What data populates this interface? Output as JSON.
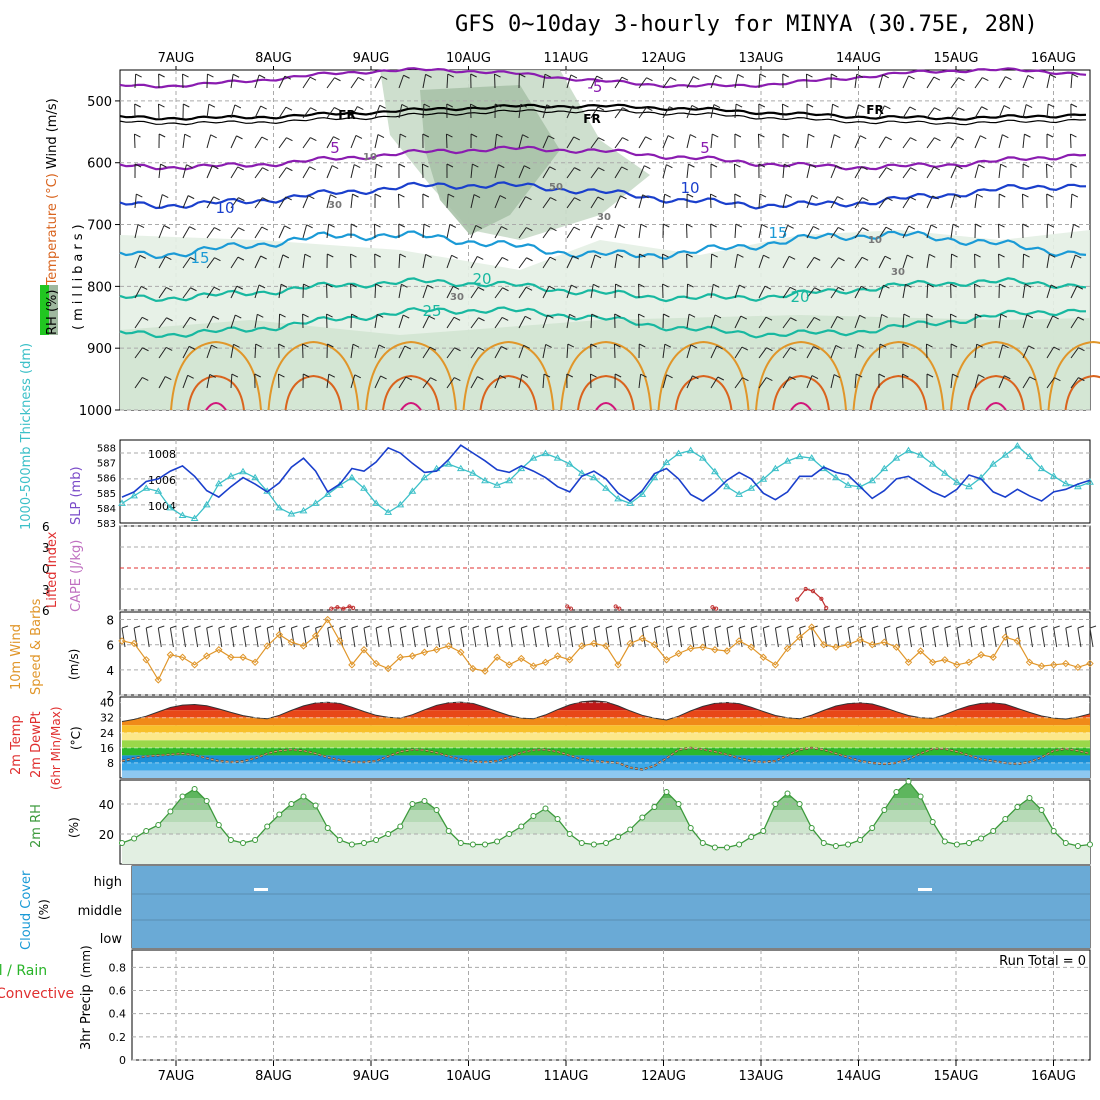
{
  "title": "GFS 0~10day 3-hourly for MINYA (30.75E, 28N)",
  "dates": [
    "7AUG",
    "8AUG",
    "9AUG",
    "10AUG",
    "11AUG",
    "12AUG",
    "13AUG",
    "14AUG",
    "15AUG",
    "16AUG"
  ],
  "colors": {
    "purple": "#8a1cb0",
    "black": "#000000",
    "blue_dark": "#1a3fcc",
    "blue": "#1a9ad6",
    "teal": "#18b8a0",
    "orange": "#e0962a",
    "orange_dark": "#d9641e",
    "magenta": "#d1167a",
    "rh_green": "#cfe3cf",
    "slp": "#1a3fcc",
    "thick": "#3cc0c8",
    "wind10": "#e0962a",
    "cloud": "#6aaad6",
    "rh2m": "#3c9a3c",
    "lifted": "#e03030",
    "cape": "#c070c0"
  },
  "chart_data": [
    {
      "type": "line",
      "name": "upper-air cross-section",
      "ylabel_parts": [
        "RH (%)",
        "Temperature (°C)",
        "Wind (m/s)"
      ],
      "ylabel_units": "(millibars)",
      "yticks": [
        500,
        600,
        700,
        800,
        900,
        1000
      ],
      "ylim": [
        450,
        1000
      ],
      "contour_labels": [
        "-5",
        "FR",
        "FR",
        "FR",
        "5",
        "5",
        "10",
        "10",
        "15",
        "15",
        "20",
        "20",
        "25",
        "10",
        "30",
        "30",
        "30",
        "10",
        "50",
        "30"
      ]
    },
    {
      "type": "line",
      "ylabel": "1000-500mb Thickness (dm)",
      "ylabel_b": "SLP (mb)",
      "yticks_left": [
        583,
        584,
        585,
        586,
        587,
        588
      ],
      "ylim_left": [
        583,
        588.5
      ],
      "yticks_right": [
        1004,
        1006,
        1008
      ],
      "ylim_right": [
        1002.6,
        1009
      ],
      "x": [
        0,
        1,
        2,
        3,
        4,
        5,
        6,
        7,
        8,
        9,
        10,
        11,
        12,
        13,
        14,
        15,
        16,
        17,
        18,
        19,
        20,
        21,
        22,
        23,
        24,
        25,
        26,
        27,
        28,
        29,
        30,
        31,
        32,
        33,
        34,
        35,
        36,
        37,
        38,
        39,
        40,
        41,
        42,
        43,
        44,
        45,
        46,
        47,
        48,
        49,
        50,
        51,
        52,
        53,
        54,
        55,
        56,
        57,
        58,
        59,
        60,
        61,
        62,
        63,
        64,
        65,
        66,
        67,
        68,
        69,
        70,
        71,
        72,
        73,
        74,
        75,
        76,
        77,
        78,
        79,
        80
      ],
      "series": [
        {
          "name": "SLP",
          "values": [
            1004.6,
            1005.0,
            1005.8,
            1006.0,
            1006.6,
            1007.0,
            1006.2,
            1005.1,
            1004.6,
            1005.4,
            1006.1,
            1005.6,
            1005.0,
            1005.7,
            1006.9,
            1007.6,
            1006.6,
            1005.0,
            1005.6,
            1006.8,
            1006.6,
            1007.3,
            1008.4,
            1008.0,
            1007.2,
            1006.5,
            1006.6,
            1007.5,
            1008.6,
            1008.0,
            1007.4,
            1006.7,
            1006.5,
            1007.0,
            1006.6,
            1006.1,
            1005.4,
            1005.0,
            1006.2,
            1006.6,
            1006.0,
            1004.9,
            1004.3,
            1005.1,
            1006.4,
            1006.8,
            1006.0,
            1004.8,
            1004.3,
            1005.0,
            1005.9,
            1006.5,
            1006.0,
            1004.9,
            1004.4,
            1005.0,
            1006.2,
            1006.2,
            1006.9,
            1006.5,
            1006.3,
            1005.4,
            1004.5,
            1005.1,
            1006.0,
            1006.2,
            1005.6,
            1005.0,
            1004.6,
            1005.2,
            1006.3,
            1006.0,
            1005.0,
            1004.6,
            1005.2,
            1004.7,
            1004.3,
            1005.0,
            1005.2,
            1005.6,
            1005.9
          ]
        },
        {
          "name": "Thickness",
          "values": [
            584.3,
            584.8,
            585.3,
            585.1,
            584.0,
            583.5,
            583.3,
            584.2,
            585.6,
            586.1,
            586.4,
            586.0,
            585.1,
            584.0,
            583.6,
            583.8,
            584.3,
            584.9,
            585.5,
            586.0,
            585.3,
            584.3,
            583.7,
            584.2,
            585.1,
            586.0,
            586.6,
            586.9,
            586.6,
            586.3,
            585.8,
            585.5,
            585.8,
            586.6,
            587.3,
            587.6,
            587.3,
            586.9,
            586.3,
            586.0,
            585.3,
            584.6,
            584.3,
            584.9,
            586.0,
            587.0,
            587.6,
            587.8,
            587.3,
            586.4,
            585.4,
            584.9,
            585.3,
            585.9,
            586.6,
            587.1,
            587.4,
            587.3,
            586.6,
            586.0,
            585.5,
            585.4,
            585.8,
            586.6,
            587.3,
            587.8,
            587.5,
            586.9,
            586.3,
            585.7,
            585.4,
            586.0,
            586.9,
            587.5,
            588.1,
            587.4,
            586.6,
            586.1,
            585.6,
            585.4,
            585.7
          ]
        }
      ]
    },
    {
      "type": "line",
      "ylabel": "Lifted Index",
      "ylabel_b": "CAPE (J/kg)",
      "yticks": [
        -6,
        -3,
        0,
        3,
        6
      ],
      "ytick_labels": [
        "6",
        "3",
        "0",
        "3",
        "6"
      ],
      "ylim": [
        -6,
        6
      ],
      "series": [
        {
          "name": "CAPE",
          "x": [
            17.3,
            17.8,
            18.3,
            18.8,
            19.1
          ],
          "values": [
            0.2,
            0.4,
            0.2,
            0.5,
            0.3
          ]
        },
        {
          "name": "CAPE",
          "x": [
            36.8,
            37.1
          ],
          "values": [
            0.5,
            0.2
          ]
        },
        {
          "name": "CAPE",
          "x": [
            40.8,
            41.1
          ],
          "values": [
            0.5,
            0.2
          ]
        },
        {
          "name": "CAPE",
          "x": [
            48.8,
            49.1
          ],
          "values": [
            0.4,
            0.2
          ]
        },
        {
          "name": "CAPE",
          "x": [
            55.8,
            56.5,
            57.1,
            57.8,
            58.2
          ],
          "values": [
            1.5,
            3.0,
            2.7,
            1.6,
            0.3
          ]
        }
      ]
    },
    {
      "type": "line",
      "ylabel": "10m Wind",
      "ylabel_b": "Speed & Barbs",
      "ylabel_units": "(m/s)",
      "yticks": [
        2,
        4,
        6,
        8
      ],
      "ylim": [
        2,
        8.6
      ],
      "x": [
        0,
        1,
        2,
        3,
        4,
        5,
        6,
        7,
        8,
        9,
        10,
        11,
        12,
        13,
        14,
        15,
        16,
        17,
        18,
        19,
        20,
        21,
        22,
        23,
        24,
        25,
        26,
        27,
        28,
        29,
        30,
        31,
        32,
        33,
        34,
        35,
        36,
        37,
        38,
        39,
        40,
        41,
        42,
        43,
        44,
        45,
        46,
        47,
        48,
        49,
        50,
        51,
        52,
        53,
        54,
        55,
        56,
        57,
        58,
        59,
        60,
        61,
        62,
        63,
        64,
        65,
        66,
        67,
        68,
        69,
        70,
        71,
        72,
        73,
        74,
        75,
        76,
        77,
        78,
        79,
        80
      ],
      "series": [
        {
          "name": "10m wind speed",
          "values": [
            6.3,
            6.1,
            4.8,
            3.2,
            5.2,
            5.0,
            4.4,
            5.1,
            5.6,
            5.0,
            5.0,
            4.6,
            5.9,
            6.8,
            6.2,
            5.9,
            6.7,
            8.0,
            6.3,
            4.4,
            5.6,
            4.5,
            4.1,
            5.0,
            5.1,
            5.4,
            5.6,
            5.9,
            5.4,
            4.1,
            3.9,
            5.0,
            4.4,
            4.9,
            4.3,
            4.6,
            5.1,
            4.8,
            5.9,
            6.1,
            5.9,
            4.4,
            6.1,
            6.5,
            6.0,
            4.8,
            5.3,
            5.7,
            5.8,
            5.6,
            5.5,
            6.3,
            5.8,
            5.0,
            4.4,
            5.7,
            6.6,
            7.4,
            6.0,
            5.8,
            6.0,
            6.4,
            6.0,
            6.2,
            5.8,
            4.6,
            5.5,
            4.6,
            4.8,
            4.4,
            4.6,
            5.2,
            5.0,
            6.6,
            6.3,
            4.6,
            4.3,
            4.4,
            4.5,
            4.2,
            4.5
          ]
        }
      ]
    },
    {
      "type": "area",
      "ylabel": "2m Temp",
      "ylabel_b": "2m DewPt",
      "ylabel_c": "(6hr Min/Max)",
      "ylabel_units": "(°C)",
      "yticks": [
        8,
        16,
        24,
        32,
        40
      ],
      "ylim": [
        0,
        43
      ],
      "x": [
        0,
        1,
        2,
        3,
        4,
        5,
        6,
        7,
        8,
        9,
        10,
        11,
        12,
        13,
        14,
        15,
        16,
        17,
        18,
        19,
        20,
        21,
        22,
        23,
        24,
        25,
        26,
        27,
        28,
        29,
        30,
        31,
        32,
        33,
        34,
        35,
        36,
        37,
        38,
        39,
        40,
        41,
        42,
        43,
        44,
        45,
        46,
        47,
        48,
        49,
        50,
        51,
        52,
        53,
        54,
        55,
        56,
        57,
        58,
        59,
        60,
        61,
        62,
        63,
        64,
        65,
        66,
        67,
        68,
        69,
        70,
        71,
        72,
        73,
        74,
        75,
        76,
        77,
        78,
        79,
        80
      ],
      "series": [
        {
          "name": "2m Temp",
          "values": [
            30.0,
            31.1,
            32.8,
            35.1,
            37.4,
            38.7,
            39.0,
            38.4,
            36.7,
            34.8,
            33.1,
            32.0,
            31.5,
            33.3,
            35.9,
            38.3,
            39.8,
            40.2,
            39.6,
            37.6,
            35.3,
            33.3,
            32.2,
            31.8,
            33.6,
            36.2,
            38.6,
            40.0,
            40.3,
            39.6,
            37.6,
            35.3,
            33.2,
            31.8,
            31.5,
            33.5,
            36.3,
            38.8,
            40.5,
            41.0,
            40.4,
            38.3,
            35.6,
            33.3,
            31.8,
            30.8,
            32.8,
            35.6,
            38.0,
            39.6,
            40.1,
            39.5,
            37.6,
            35.3,
            33.2,
            32.0,
            31.5,
            33.4,
            35.9,
            38.2,
            39.5,
            39.9,
            39.3,
            37.4,
            35.2,
            33.2,
            32.0,
            31.7,
            33.6,
            36.2,
            38.3,
            39.6,
            39.9,
            39.1,
            37.0,
            34.8,
            32.9,
            31.8,
            31.3,
            32.4,
            34.1
          ]
        },
        {
          "name": "2m DewPt",
          "values": [
            9.0,
            10.5,
            11.5,
            12.0,
            12.5,
            13.0,
            12.2,
            10.5,
            9.0,
            8.5,
            8.8,
            10.5,
            13.0,
            14.5,
            15.0,
            14.5,
            13.0,
            11.0,
            9.5,
            8.5,
            8.5,
            9.0,
            11.5,
            14.0,
            15.0,
            14.8,
            13.5,
            11.5,
            10.0,
            8.8,
            8.5,
            9.0,
            11.0,
            13.5,
            14.8,
            15.0,
            14.0,
            12.0,
            10.0,
            9.0,
            8.5,
            8.0,
            5.5,
            4.5,
            6.5,
            10.5,
            15.0,
            16.0,
            15.2,
            14.0,
            12.5,
            10.5,
            9.0,
            8.5,
            9.0,
            12.0,
            15.0,
            16.0,
            15.0,
            13.0,
            11.0,
            9.0,
            8.0,
            7.5,
            8.0,
            10.0,
            13.0,
            15.5,
            15.5,
            14.0,
            12.0,
            10.0,
            9.0,
            8.0,
            7.5,
            8.5,
            11.0,
            14.5,
            15.5,
            14.5,
            13.0
          ]
        }
      ]
    },
    {
      "type": "area",
      "ylabel": "2m RH",
      "ylabel_units": "(%)",
      "yticks": [
        20,
        40
      ],
      "ylim": [
        0,
        56
      ],
      "x": [
        0,
        1,
        2,
        3,
        4,
        5,
        6,
        7,
        8,
        9,
        10,
        11,
        12,
        13,
        14,
        15,
        16,
        17,
        18,
        19,
        20,
        21,
        22,
        23,
        24,
        25,
        26,
        27,
        28,
        29,
        30,
        31,
        32,
        33,
        34,
        35,
        36,
        37,
        38,
        39,
        40,
        41,
        42,
        43,
        44,
        45,
        46,
        47,
        48,
        49,
        50,
        51,
        52,
        53,
        54,
        55,
        56,
        57,
        58,
        59,
        60,
        61,
        62,
        63,
        64,
        65,
        66,
        67,
        68,
        69,
        70,
        71,
        72,
        73,
        74,
        75,
        76,
        77,
        78,
        79,
        80
      ],
      "series": [
        {
          "name": "2m RH",
          "values": [
            14,
            17,
            22,
            26,
            35,
            45,
            50,
            42,
            26,
            16,
            14,
            16,
            25,
            33,
            40,
            45,
            39,
            24,
            16,
            13,
            14,
            16,
            20,
            25,
            40,
            42,
            36,
            22,
            14,
            13,
            13,
            15,
            20,
            25,
            32,
            37,
            30,
            20,
            14,
            13,
            14,
            18,
            23,
            31,
            38,
            48,
            40,
            24,
            14,
            11,
            11,
            13,
            18,
            22,
            40,
            47,
            40,
            24,
            14,
            12,
            13,
            16,
            24,
            36,
            48,
            55,
            45,
            28,
            15,
            13,
            14,
            17,
            22,
            30,
            38,
            44,
            36,
            22,
            14,
            12,
            13
          ]
        }
      ]
    },
    {
      "type": "area",
      "ylabel": "Cloud Cover",
      "ylabel_units": "(%)",
      "ytick_labels": [
        "high",
        "middle",
        "low"
      ],
      "series": [
        {
          "name": "low",
          "values": [
            100
          ]
        },
        {
          "name": "middle",
          "values": [
            100
          ]
        },
        {
          "name": "high",
          "values": [
            100
          ]
        }
      ]
    },
    {
      "type": "bar",
      "ylabel": "3hr Precip",
      "ylabel_units": "(mm)",
      "legend": [
        "Total / Rain",
        "Convective"
      ],
      "annotation": "Run Total = 0",
      "yticks": [
        0,
        0.2,
        0.4,
        0.6,
        0.8
      ],
      "ylim": [
        0,
        0.95
      ],
      "series": [
        {
          "name": "Total / Rain",
          "values": []
        },
        {
          "name": "Convective",
          "values": []
        }
      ]
    }
  ]
}
